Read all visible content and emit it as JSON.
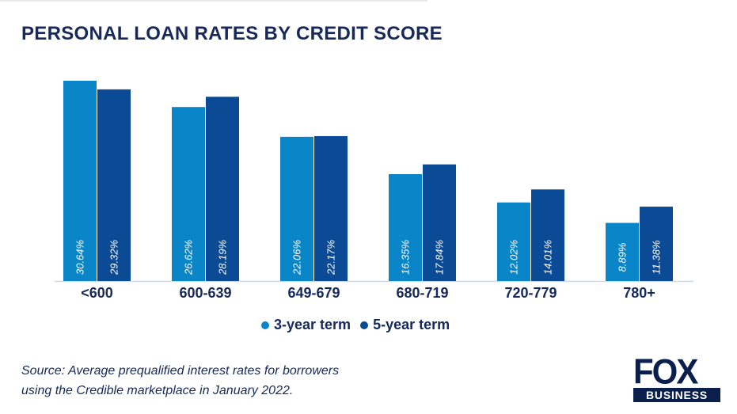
{
  "chart_data": {
    "type": "bar",
    "title": "PERSONAL LOAN RATES BY CREDIT SCORE",
    "categories": [
      "<600",
      "600-639",
      "649-679",
      "680-719",
      "720-779",
      "780+"
    ],
    "series": [
      {
        "name": "3-year term",
        "color": "#0a85c8",
        "values": [
          30.64,
          26.62,
          22.06,
          16.35,
          12.02,
          8.89
        ],
        "labels": [
          "30.64%",
          "26.62%",
          "22.06%",
          "16.35%",
          "12.02%",
          "8.89%"
        ]
      },
      {
        "name": "5-year term",
        "color": "#0b4a94",
        "values": [
          29.32,
          28.19,
          22.17,
          17.84,
          14.01,
          11.38
        ],
        "labels": [
          "29.32%",
          "28.19%",
          "22.17%",
          "17.84%",
          "14.01%",
          "11.38%"
        ]
      }
    ],
    "xlabel": "",
    "ylabel": "",
    "ylim": [
      0,
      30.64
    ],
    "grid": false,
    "legend_position": "bottom"
  },
  "source_line1": "Source: Average prequalified interest rates for borrowers",
  "source_line2": "using the Credible marketplace in January 2022.",
  "logo": {
    "line1": "FOX",
    "line2": "BUSINESS"
  },
  "colors": {
    "text": "#16295a",
    "axis": "#c9d9ee"
  }
}
